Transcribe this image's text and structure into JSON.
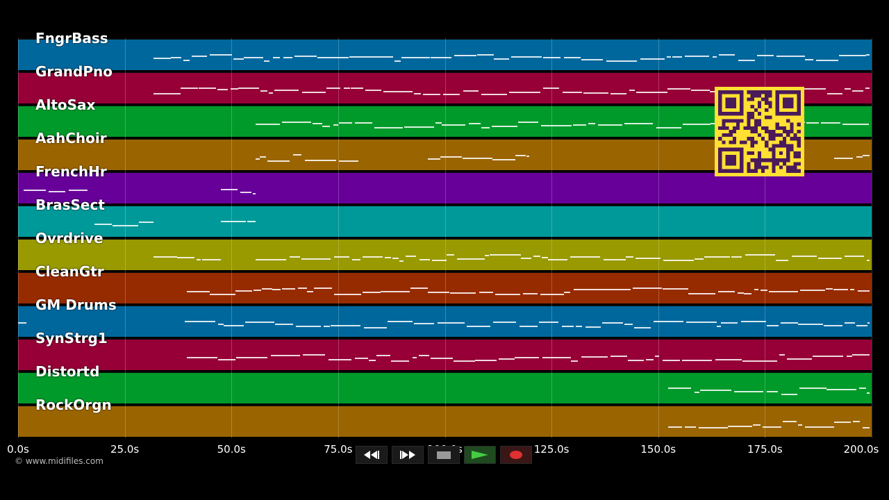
{
  "tracks": [
    {
      "name": "FngrBass",
      "color": "#00679d"
    },
    {
      "name": "GrandPno",
      "color": "#960036"
    },
    {
      "name": "AltoSax",
      "color": "#009a2a"
    },
    {
      "name": "AahChoir",
      "color": "#9a6400"
    },
    {
      "name": "FrenchHr",
      "color": "#660099"
    },
    {
      "name": "BrasSect",
      "color": "#009999"
    },
    {
      "name": "Ovrdrive",
      "color": "#999900"
    },
    {
      "name": "CleanGtr",
      "color": "#972b00"
    },
    {
      "name": "GM Drums",
      "color": "#00679d"
    },
    {
      "name": "SynStrg1",
      "color": "#960036"
    },
    {
      "name": "Distortd",
      "color": "#009a2a"
    },
    {
      "name": "RockOrgn",
      "color": "#9a6400"
    }
  ],
  "timeline": {
    "ticks": [
      "0.0s",
      "25.0s",
      "50.0s",
      "75.0s",
      "100.0s",
      "125.0s",
      "150.0s",
      "175.0s",
      "200.0s"
    ],
    "duration_seconds": 200.0
  },
  "credit": "© www.midifiles.com",
  "transport": {
    "rewind_icon": "rewind-icon",
    "forward_icon": "fast-forward-icon",
    "stop_icon": "stop-icon",
    "play_icon": "play-icon",
    "record_icon": "record-icon"
  },
  "qr_icon": "qr-code-icon"
}
